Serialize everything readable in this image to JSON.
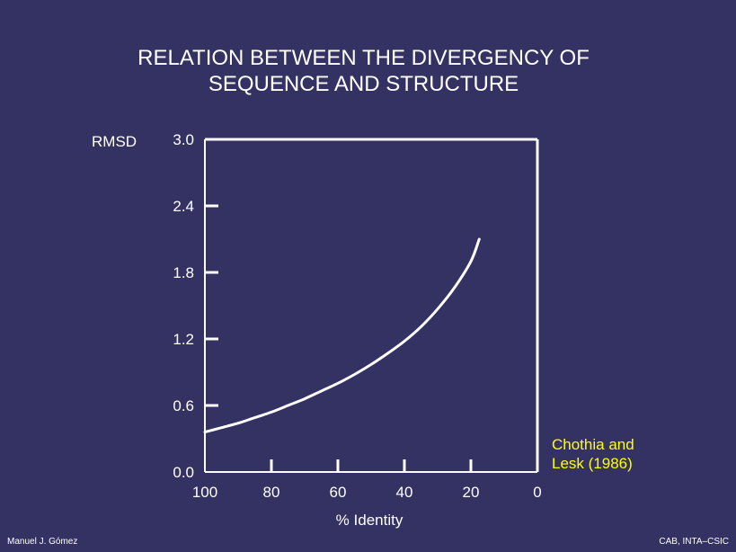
{
  "slide": {
    "title_line1": "RELATION BETWEEN THE DIVERGENCY OF",
    "title_line2": "SEQUENCE AND STRUCTURE",
    "footer_left": "Manuel J. Gómez",
    "footer_right": "CAB, INTA–CSIC",
    "citation_line1": "Chothia and",
    "citation_line2": "Lesk (1986)"
  },
  "colors": {
    "background": "#343263",
    "foreground": "#ffffff",
    "citation": "#ffff00"
  },
  "chart_data": {
    "type": "line",
    "title": "RELATION BETWEEN THE DIVERGENCY OF SEQUENCE AND STRUCTURE",
    "xlabel": "% Identity",
    "ylabel": "RMSD",
    "xlim": [
      100,
      0
    ],
    "ylim": [
      0.0,
      3.0
    ],
    "x_reversed": true,
    "x_ticks": [
      100,
      80,
      60,
      40,
      20,
      0
    ],
    "x_tick_labels": [
      "100",
      "80",
      "60",
      "40",
      "20",
      "0"
    ],
    "y_ticks": [
      0.0,
      0.6,
      1.2,
      1.8,
      2.4,
      3.0
    ],
    "y_tick_labels": [
      "0.0",
      "0.6",
      "1.2",
      "1.8",
      "2.4",
      "3.0"
    ],
    "grid": false,
    "series": [
      {
        "x": [
          100,
          95,
          90,
          85,
          80,
          75,
          70,
          65,
          60,
          55,
          50,
          45,
          40,
          35,
          30,
          25,
          20,
          17.5
        ],
        "y": [
          0.36,
          0.4,
          0.44,
          0.49,
          0.54,
          0.6,
          0.66,
          0.73,
          0.8,
          0.88,
          0.97,
          1.07,
          1.18,
          1.31,
          1.47,
          1.66,
          1.9,
          2.1
        ]
      }
    ]
  }
}
